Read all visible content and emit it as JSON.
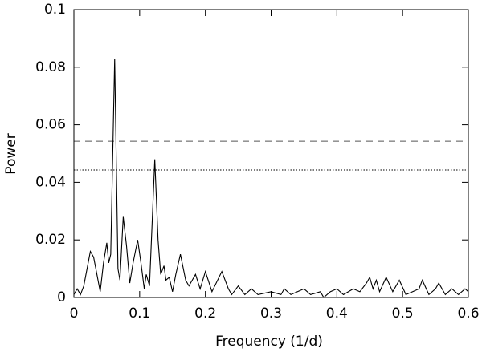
{
  "chart_data": {
    "type": "line",
    "x_label": "Frequency (1/d)",
    "y_label": "Power",
    "xlim": [
      0,
      0.6
    ],
    "ylim": [
      0,
      0.1
    ],
    "xticks": [
      0,
      0.1,
      0.2,
      0.3,
      0.4,
      0.5,
      0.6
    ],
    "yticks": [
      0,
      0.02,
      0.04,
      0.06,
      0.08,
      0.1
    ],
    "series": [
      {
        "color": "#000000",
        "x": [
          0,
          0.005,
          0.01,
          0.015,
          0.02,
          0.025,
          0.03,
          0.035,
          0.04,
          0.045,
          0.05,
          0.053,
          0.056,
          0.062,
          0.067,
          0.07,
          0.075,
          0.08,
          0.085,
          0.09,
          0.097,
          0.102,
          0.107,
          0.11,
          0.115,
          0.123,
          0.128,
          0.132,
          0.137,
          0.14,
          0.145,
          0.15,
          0.155,
          0.162,
          0.17,
          0.175,
          0.185,
          0.192,
          0.2,
          0.21,
          0.225,
          0.235,
          0.24,
          0.25,
          0.26,
          0.27,
          0.28,
          0.3,
          0.315,
          0.32,
          0.33,
          0.35,
          0.36,
          0.375,
          0.38,
          0.39,
          0.4,
          0.41,
          0.425,
          0.435,
          0.445,
          0.45,
          0.455,
          0.46,
          0.465,
          0.475,
          0.485,
          0.495,
          0.505,
          0.515,
          0.525,
          0.53,
          0.54,
          0.55,
          0.555,
          0.565,
          0.575,
          0.585,
          0.595,
          0.6
        ],
        "values": [
          0.001,
          0.003,
          0.001,
          0.004,
          0.01,
          0.016,
          0.014,
          0.008,
          0.002,
          0.012,
          0.019,
          0.012,
          0.015,
          0.083,
          0.01,
          0.006,
          0.028,
          0.018,
          0.005,
          0.012,
          0.02,
          0.012,
          0.003,
          0.008,
          0.004,
          0.048,
          0.02,
          0.008,
          0.011,
          0.006,
          0.007,
          0.002,
          0.008,
          0.015,
          0.006,
          0.004,
          0.008,
          0.003,
          0.009,
          0.002,
          0.009,
          0.003,
          0.001,
          0.004,
          0.001,
          0.003,
          0.001,
          0.002,
          0.001,
          0.003,
          0.001,
          0.003,
          0.001,
          0.002,
          0.0,
          0.002,
          0.003,
          0.001,
          0.003,
          0.002,
          0.005,
          0.007,
          0.003,
          0.006,
          0.002,
          0.007,
          0.002,
          0.006,
          0.001,
          0.002,
          0.003,
          0.006,
          0.001,
          0.003,
          0.005,
          0.001,
          0.003,
          0.001,
          0.003,
          0.002
        ]
      }
    ],
    "reference_lines": [
      {
        "value": 0.0543,
        "style": "dashed",
        "color": "#555555"
      },
      {
        "value": 0.0443,
        "style": "dotted",
        "color": "#000000"
      }
    ]
  }
}
